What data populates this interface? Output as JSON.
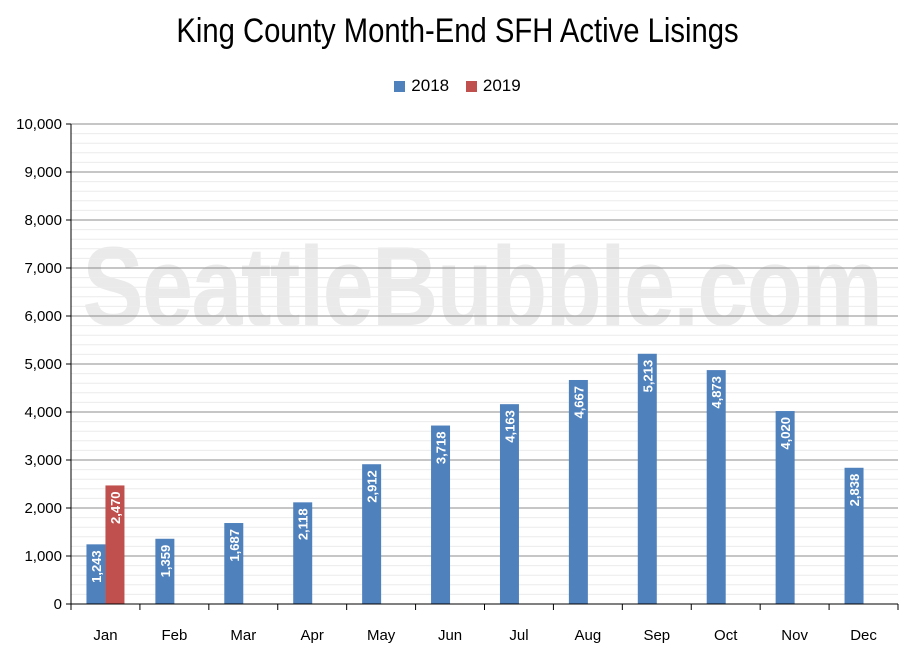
{
  "chart_data": {
    "type": "bar",
    "title": "King County Month-End SFH Active Lisings",
    "xlabel": "",
    "ylabel": "",
    "ylim": [
      0,
      10000
    ],
    "y_ticks": [
      "0",
      "1,000",
      "2,000",
      "3,000",
      "4,000",
      "5,000",
      "6,000",
      "7,000",
      "8,000",
      "9,000",
      "10,000"
    ],
    "categories": [
      "Jan",
      "Feb",
      "Mar",
      "Apr",
      "May",
      "Jun",
      "Jul",
      "Aug",
      "Sep",
      "Oct",
      "Nov",
      "Dec"
    ],
    "series": [
      {
        "name": "2018",
        "color": "#4f81bd",
        "values": [
          1243,
          1359,
          1687,
          2118,
          2912,
          3718,
          4163,
          4667,
          5213,
          4873,
          4020,
          2838
        ],
        "labels": [
          "1,243",
          "1,359",
          "1,687",
          "2,118",
          "2,912",
          "3,718",
          "4,163",
          "4,667",
          "5,213",
          "4,873",
          "4,020",
          "2,838"
        ]
      },
      {
        "name": "2019",
        "color": "#c0504d",
        "values": [
          2470,
          null,
          null,
          null,
          null,
          null,
          null,
          null,
          null,
          null,
          null,
          null
        ],
        "labels": [
          "2,470",
          null,
          null,
          null,
          null,
          null,
          null,
          null,
          null,
          null,
          null,
          null
        ]
      }
    ],
    "grid": true,
    "legend": "top"
  },
  "watermark": "SeattleBubble.com"
}
